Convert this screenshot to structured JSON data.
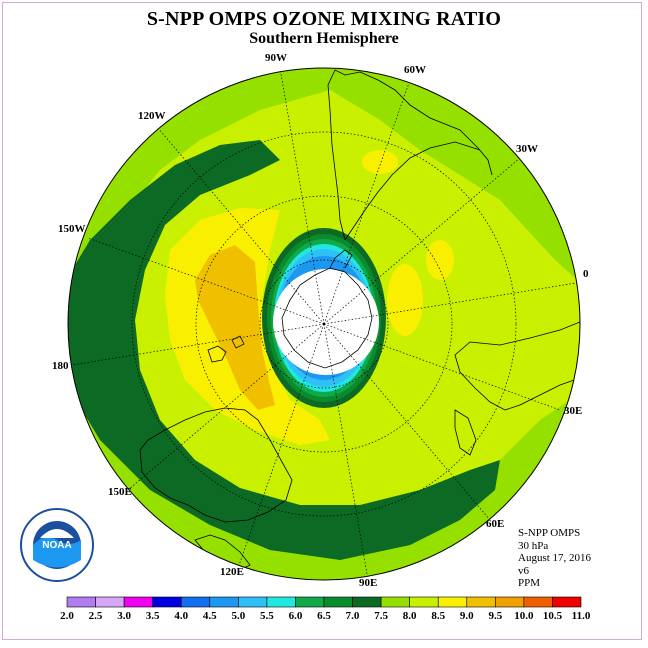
{
  "title": "S-NPP OMPS OZONE MIXING RATIO",
  "subtitle": "Southern Hemisphere",
  "longitude_labels": [
    "90W",
    "60W",
    "30W",
    "0",
    "30E",
    "60E",
    "90E",
    "120E",
    "150E",
    "180",
    "150W",
    "120W"
  ],
  "info": {
    "instrument": "S-NPP OMPS",
    "level": "30 hPa",
    "date": "August 17, 2016",
    "version": "v6",
    "units": "PPM"
  },
  "logo_text": "NOAA",
  "colorbar": {
    "labels": [
      "2.0",
      "2.5",
      "3.0",
      "3.5",
      "4.0",
      "4.5",
      "5.0",
      "5.5",
      "6.0",
      "6.5",
      "7.0",
      "7.5",
      "8.0",
      "8.5",
      "9.0",
      "9.5",
      "10.0",
      "10.5",
      "11.0"
    ],
    "colors": [
      "#b07cf0",
      "#d8a8f8",
      "#f000f0",
      "#0000e0",
      "#1070f0",
      "#1c98f0",
      "#30c0f8",
      "#20e8e0",
      "#10a848",
      "#0a8c2c",
      "#0c6a24",
      "#96e000",
      "#c8f000",
      "#f8f000",
      "#f0c000",
      "#f0a000",
      "#f06000",
      "#f00000",
      "#7a4a2a"
    ]
  }
}
